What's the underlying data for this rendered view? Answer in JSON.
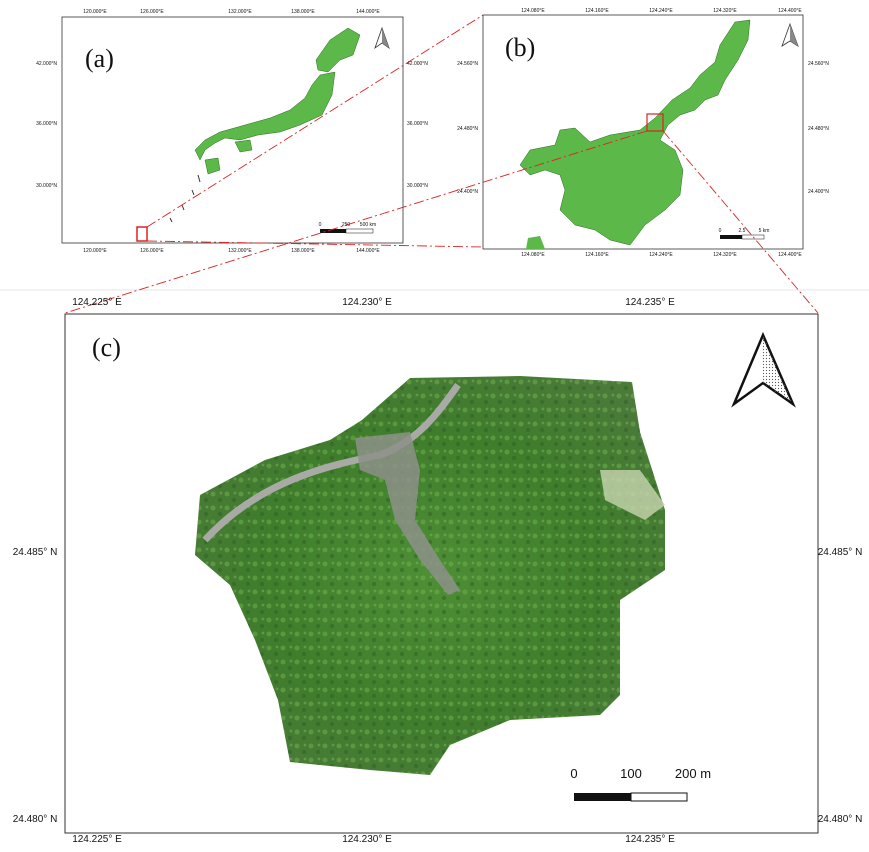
{
  "panels": [
    {
      "label": "(a)",
      "x_ticks": [
        "120.000°E",
        "126.000°E",
        "132.000°E",
        "138.000°E",
        "144.000°E"
      ],
      "y_ticks": [
        "42.000°N",
        "36.000°N",
        "30.000°N"
      ],
      "scale_labels": [
        "0",
        "250",
        "500 km"
      ]
    },
    {
      "label": "(b)",
      "x_ticks": [
        "124.080°E",
        "124.160°E",
        "124.240°E",
        "124.320°E",
        "124.400°E"
      ],
      "y_ticks": [
        "24.560°N",
        "24.480°N",
        "24.400°N"
      ],
      "scale_labels": [
        "0",
        "2.5",
        "5 km"
      ]
    },
    {
      "label": "(c)",
      "x_ticks": [
        "124.225°  E",
        "124.230°  E",
        "124.235°  E"
      ],
      "y_ticks": [
        "24.485°  N",
        "24.480°  N"
      ],
      "scale_labels": [
        "0",
        "100",
        "200 m"
      ]
    }
  ]
}
